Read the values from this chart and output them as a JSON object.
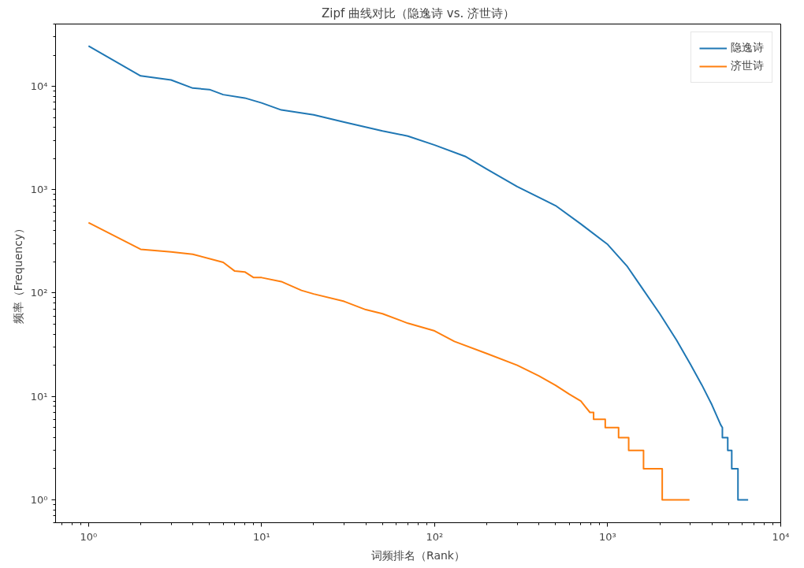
{
  "chart_data": {
    "type": "line",
    "title": "Zipf 曲线对比（隐逸诗 vs. 济世诗）",
    "xlabel": "词频排名（Rank）",
    "ylabel": "频率（Frequency）",
    "log": "xy",
    "grid": false,
    "legend": "top right",
    "marker": "none",
    "line_style": "solid",
    "xlim": [
      0.645,
      10000
    ],
    "ylim": [
      0.6,
      40000
    ],
    "xticks": [
      {
        "value": 1,
        "label": "10⁰"
      },
      {
        "value": 10,
        "label": "10¹"
      },
      {
        "value": 100,
        "label": "10²"
      },
      {
        "value": 1000,
        "label": "10³"
      },
      {
        "value": 10000,
        "label": "10⁴"
      }
    ],
    "yticks": [
      {
        "value": 1,
        "label": "10⁰"
      },
      {
        "value": 10,
        "label": "10¹"
      },
      {
        "value": 100,
        "label": "10²"
      },
      {
        "value": 1000,
        "label": "10³"
      },
      {
        "value": 10000,
        "label": "10⁴"
      }
    ],
    "series": [
      {
        "name": "隐逸诗",
        "color": "#1f77b4",
        "x": [
          1,
          2,
          3,
          4,
          5,
          6,
          8,
          10,
          13,
          20,
          30,
          50,
          70,
          100,
          150,
          200,
          300,
          500,
          700,
          1000,
          1300,
          1500,
          2000,
          2500,
          3000,
          3500,
          4000,
          4500,
          4600,
          4600,
          4940,
          4940,
          5210,
          5210,
          5660,
          5660,
          6480
        ],
        "values": [
          24500,
          12600,
          11500,
          9600,
          9300,
          8300,
          7700,
          6900,
          5900,
          5300,
          4500,
          3700,
          3300,
          2700,
          2100,
          1580,
          1070,
          700,
          465,
          295,
          180,
          127,
          63,
          35,
          20.6,
          12.9,
          8.3,
          5.3,
          5,
          4,
          4,
          3,
          3,
          2,
          2,
          1,
          1
        ]
      },
      {
        "name": "济世诗",
        "color": "#ff7f0e",
        "x": [
          1,
          2,
          3,
          4,
          6,
          7,
          8,
          9,
          10,
          13,
          17,
          20,
          30,
          40,
          50,
          70,
          100,
          130,
          200,
          300,
          400,
          500,
          600,
          700,
          740,
          790,
          829,
          829,
          968,
          968,
          1156,
          1156,
          1322,
          1322,
          1611,
          1611,
          2066,
          2066,
          2970
        ],
        "values": [
          480,
          265,
          250,
          237,
          198,
          163,
          160,
          141,
          141,
          129,
          106,
          98,
          83,
          69,
          63,
          51,
          43,
          34,
          26,
          20,
          15.8,
          12.8,
          10.5,
          9,
          8,
          7,
          7,
          6,
          6,
          5,
          5,
          4,
          4,
          3,
          3,
          2,
          2,
          1,
          1
        ]
      }
    ]
  }
}
